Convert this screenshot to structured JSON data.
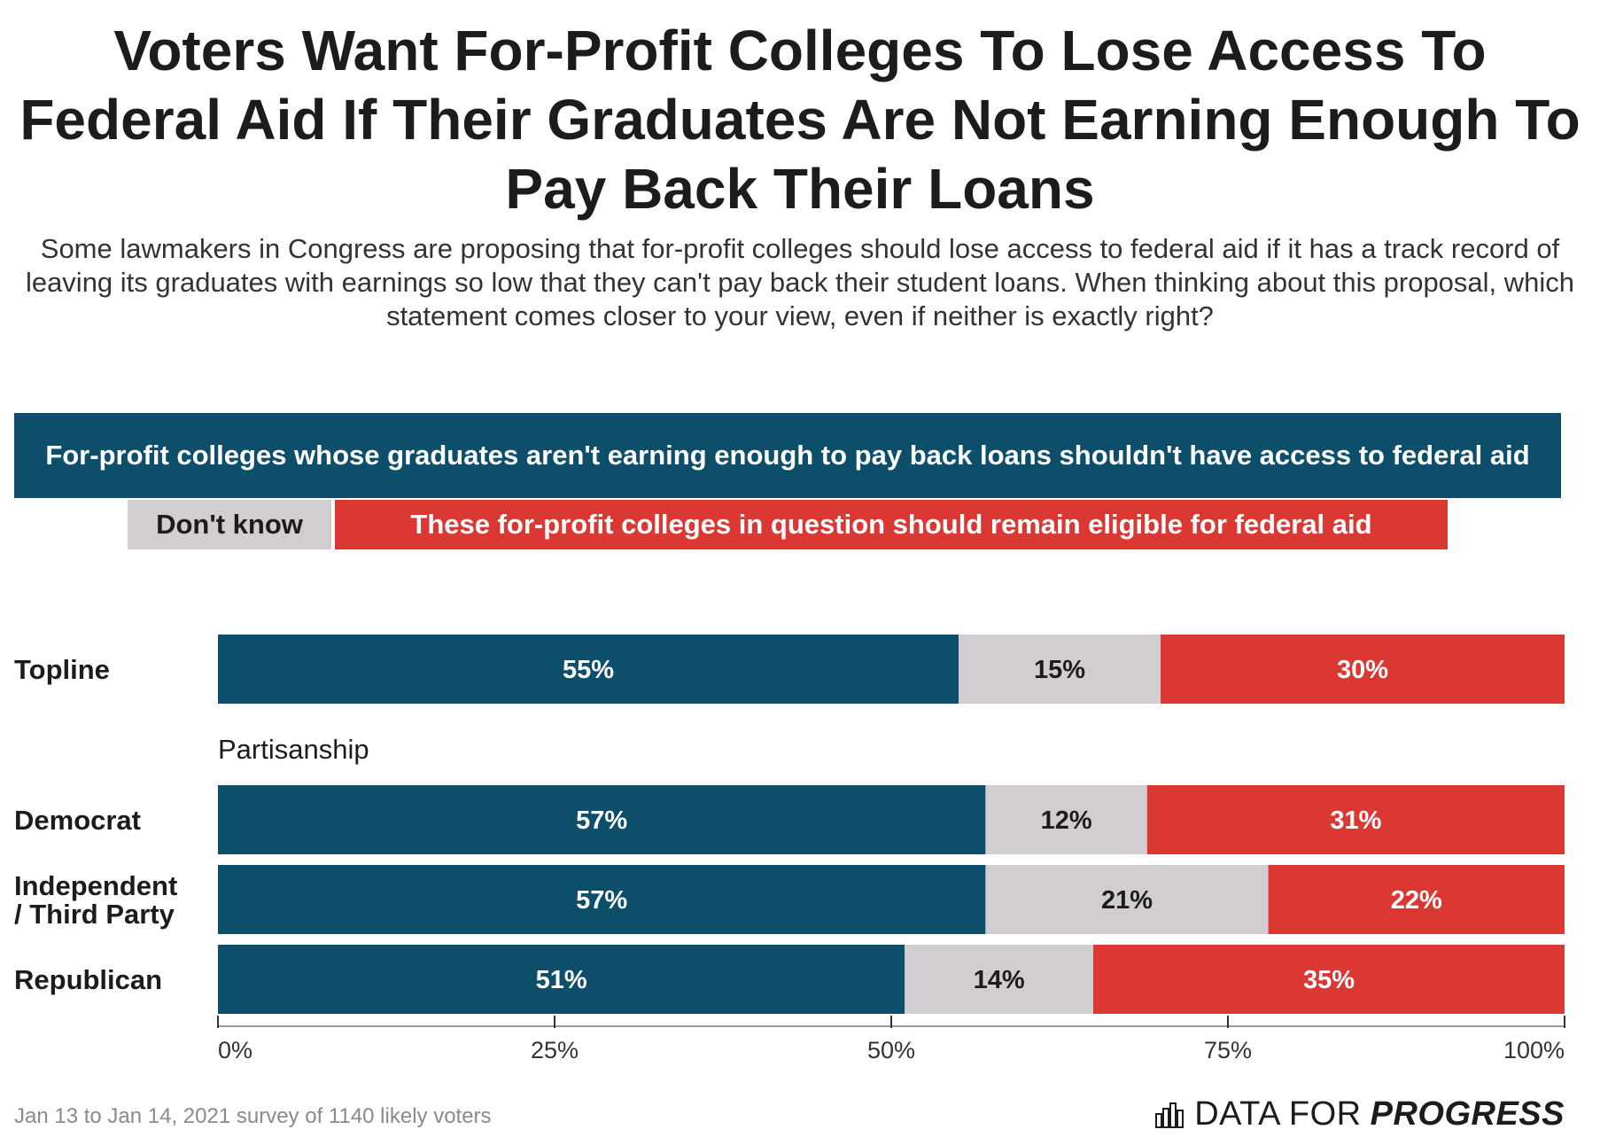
{
  "title": "Voters Want For-Profit Colleges To Lose Access To Federal Aid If Their Graduates Are Not Earning Enough To Pay Back Their Loans",
  "subtitle": "Some lawmakers in Congress are proposing that for-profit colleges should lose access to federal aid if it has a track record of leaving its graduates with earnings so low that they can't pay back their student loans. When thinking about this proposal, which statement comes closer to your view, even if neither is exactly right?",
  "source": "Jan 13 to Jan 14, 2021 survey of 1140 likely voters",
  "brand": {
    "part_a": "DATA FOR",
    "part_b": "PROGRESS",
    "icon": "bar-chart-icon"
  },
  "colors": {
    "agree": "#0d4f6b",
    "dont_know": "#d1cdd1",
    "eligible": "#db3834",
    "axis": "#333333"
  },
  "chart_data": {
    "type": "bar",
    "orientation": "horizontal",
    "stacked": true,
    "xlim": [
      0,
      100
    ],
    "ticks": [
      "0%",
      "25%",
      "50%",
      "75%",
      "100%"
    ],
    "tick_values": [
      0,
      25,
      50,
      75,
      100
    ],
    "legend": [
      "For-profit colleges whose graduates aren't earning enough to pay back loans shouldn't have access to federal aid",
      "Don't know",
      "These for-profit colleges in question should remain eligible for federal aid"
    ],
    "group_label": "Partisanship",
    "categories": [
      "Topline",
      "Democrat",
      "Independent / Third Party",
      "Republican"
    ],
    "category_lines": [
      [
        "Topline"
      ],
      [
        "Democrat"
      ],
      [
        "Independent",
        "/ Third Party"
      ],
      [
        "Republican"
      ]
    ],
    "series": [
      {
        "name": "For-profit colleges whose graduates aren't earning enough to pay back loans shouldn't have access to federal aid",
        "values": [
          55,
          57,
          57,
          51
        ],
        "labels": [
          "55%",
          "57%",
          "57%",
          "51%"
        ]
      },
      {
        "name": "Don't know",
        "values": [
          15,
          12,
          21,
          14
        ],
        "labels": [
          "15%",
          "12%",
          "21%",
          "14%"
        ]
      },
      {
        "name": "These for-profit colleges in question should remain eligible for federal aid",
        "values": [
          30,
          31,
          22,
          35
        ],
        "labels": [
          "30%",
          "31%",
          "22%",
          "35%"
        ]
      }
    ]
  }
}
